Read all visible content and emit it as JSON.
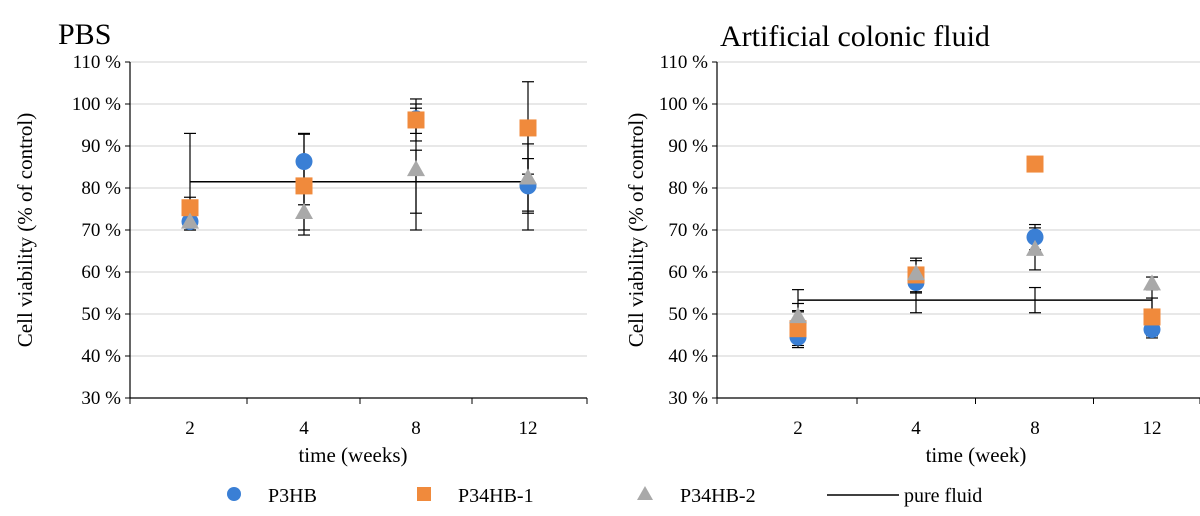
{
  "chart_data": [
    {
      "type": "scatter",
      "title": "PBS",
      "xlabel": "time (weeks)",
      "ylabel": "Cell viability (% of control)",
      "categories": [
        "2",
        "4",
        "8",
        "12"
      ],
      "ylim": [
        30,
        110
      ],
      "yticks": [
        "30 %",
        "40 %",
        "50 %",
        "60 %",
        "70 %",
        "80 %",
        "90 %",
        "100 %",
        "110 %"
      ],
      "grid": true,
      "series": [
        {
          "name": "P3HB",
          "values": [
            72,
            86.3,
            96.5,
            80.5
          ],
          "err": [
            1.5,
            6.5,
            3.5,
            6.5
          ]
        },
        {
          "name": "P34HB-1",
          "values": [
            75.3,
            80.5,
            96.2,
            94.3
          ],
          "err": [
            2.5,
            4.5,
            5,
            11
          ]
        },
        {
          "name": "P34HB-2",
          "values": [
            72,
            74.3,
            84.5,
            82.5
          ],
          "err": [
            2,
            5.5,
            14.5,
            8
          ]
        }
      ],
      "reference": {
        "name": "pure fluid",
        "value": 81.5,
        "err": [
          11.5,
          11.5,
          7.5,
          11.5
        ]
      }
    },
    {
      "type": "scatter",
      "title": "Artificial colonic fluid",
      "xlabel": "time (week)",
      "ylabel": "Cell viability (% of control)",
      "categories": [
        "2",
        "4",
        "8",
        "12"
      ],
      "ylim": [
        30,
        110
      ],
      "yticks": [
        "30 %",
        "40 %",
        "50 %",
        "60 %",
        "70 %",
        "80 %",
        "90 %",
        "100 %",
        "110 %"
      ],
      "grid": true,
      "series": [
        {
          "name": "P3HB",
          "values": [
            44.5,
            57.5,
            68.3,
            46.3
          ],
          "err": [
            2.5,
            2.5,
            3,
            2
          ]
        },
        {
          "name": "P34HB-1",
          "values": [
            46.5,
            59.3,
            85.7,
            49.3
          ],
          "err": [
            4,
            4,
            1.5,
            4.5
          ]
        },
        {
          "name": "P34HB-2",
          "values": [
            49.5,
            59.7,
            65.5,
            57.3
          ],
          "err": [
            3,
            3,
            5,
            1.5
          ]
        }
      ],
      "reference": {
        "name": "pure fluid",
        "value": 53.3,
        "err": [
          2.5,
          3,
          3,
          2.5
        ]
      }
    }
  ],
  "legend": {
    "items": [
      {
        "label": "P3HB",
        "marker": "circle",
        "color": "#3a7fd5"
      },
      {
        "label": "P34HB-1",
        "marker": "square",
        "color": "#f08a3c"
      },
      {
        "label": "P34HB-2",
        "marker": "triangle",
        "color": "#a9a9a9"
      },
      {
        "label": "pure fluid",
        "marker": "line",
        "color": "#000000"
      }
    ]
  },
  "colors": {
    "P3HB": "#3a7fd5",
    "P34HB-1": "#f08a3c",
    "P34HB-2": "#a9a9a9",
    "grid": "#d0d0d0",
    "axis": "#000000"
  }
}
